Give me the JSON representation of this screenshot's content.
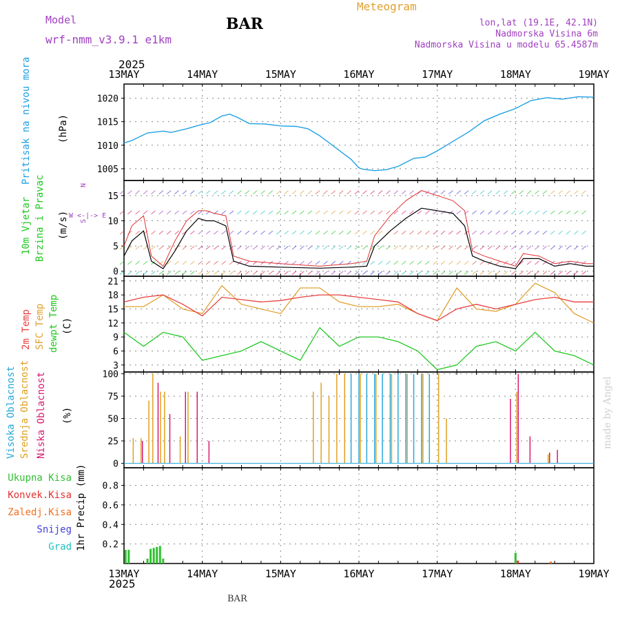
{
  "header": {
    "model_label": "Model",
    "model_name": "wrf-nmm_v3.9.1 e1km",
    "station": "BAR",
    "meteogram": "Meteogram",
    "lonlat": "lon,lat (19.1E, 42.1N)",
    "elev": "Nadmorska Visina 6m",
    "elev_model": "Nadmorska Visina u modelu 65.4587m",
    "footer_station": "BAR",
    "credit": "made by Angel"
  },
  "colors": {
    "pressure": "#1ea0e6",
    "temp2m": "#e64040",
    "sfc": "#e0a030",
    "dewpt": "#20c820",
    "high_cloud": "#28a8d8",
    "mid_cloud": "#e0a020",
    "low_cloud": "#d81870",
    "total_precip": "#30c030",
    "conv_precip": "#e03030",
    "frz_precip": "#f07020",
    "snow": "#4040e0",
    "hail": "#20c0c0",
    "wind_speed": "#000000",
    "wind_gust": "#e03030",
    "purple": "#a040c0"
  },
  "time_axis": {
    "year": "2025",
    "ticks": [
      "13MAY",
      "14MAY",
      "15MAY",
      "16MAY",
      "17MAY",
      "18MAY",
      "19MAY"
    ]
  },
  "side_labels": {
    "pressure": [
      "Pritisak na nivou mora"
    ],
    "pressure_unit": "(hPa)",
    "wind": [
      "10m Vjetar",
      "Brzina i Pravac"
    ],
    "wind_unit": "(m/s)",
    "wind_compass_top": "N",
    "wind_compass_mid": "W <-|-> E",
    "wind_compass_bot": "S",
    "temp": [
      "2m Temp",
      "SFC Temp",
      "dewpt Temp"
    ],
    "temp_unit": "(C)",
    "cloud": [
      "Visoka Oblacnost",
      "Srednja Oblacnost",
      "Niska Oblacnost"
    ],
    "cloud_unit": "(%)",
    "precip_legend": [
      "Ukupna Kisa",
      "Konvek.Kisa",
      "Zaledj.Kisa",
      "Snijeg",
      "Grad"
    ],
    "precip_unit": "1hr Precip (mm)"
  },
  "chart_data": [
    {
      "type": "line",
      "title": "Pritisak na nivou mora",
      "ylabel": "(hPa)",
      "ylim": [
        1002.5,
        1023
      ],
      "yticks": [
        1005,
        1010,
        1015,
        1020
      ],
      "x_days": [
        0,
        0.1,
        0.2,
        0.3,
        0.4,
        0.5,
        0.6,
        0.8,
        0.95,
        1.1,
        1.25,
        1.35,
        1.45,
        1.6,
        1.8,
        2.0,
        2.2,
        2.35,
        2.5,
        2.7,
        2.9,
        3.0,
        3.05,
        3.2,
        3.35,
        3.5,
        3.7,
        3.85,
        4.0,
        4.2,
        4.4,
        4.6,
        4.8,
        5.0,
        5.2,
        5.4,
        5.6,
        5.8,
        6.0
      ],
      "series": [
        {
          "values": [
            1010.5,
            1011,
            1011.8,
            1012.6,
            1012.8,
            1013,
            1012.7,
            1013.5,
            1014.2,
            1014.8,
            1016.2,
            1016.6,
            1015.9,
            1014.6,
            1014.5,
            1014.1,
            1014,
            1013.5,
            1012,
            1009.5,
            1007,
            1005.2,
            1004.9,
            1004.6,
            1004.8,
            1005.5,
            1007.2,
            1007.5,
            1008.8,
            1010.8,
            1012.8,
            1015.2,
            1016.6,
            1017.8,
            1019.5,
            1020.1,
            1019.8,
            1020.3,
            1020.2
          ]
        }
      ]
    },
    {
      "type": "line",
      "title": "10m Vjetar Brzina i Pravac",
      "ylabel": "(m/s)",
      "ylim": [
        -1,
        18
      ],
      "yticks": [
        0,
        5,
        10,
        15
      ],
      "x_days": [
        0,
        0.1,
        0.25,
        0.35,
        0.5,
        0.65,
        0.8,
        0.95,
        1.05,
        1.15,
        1.3,
        1.4,
        1.6,
        2.0,
        2.5,
        2.9,
        3.1,
        3.2,
        3.4,
        3.6,
        3.8,
        4.0,
        4.2,
        4.35,
        4.45,
        4.6,
        4.8,
        5.0,
        5.1,
        5.3,
        5.5,
        5.7,
        5.9,
        6.0
      ],
      "series": [
        {
          "name": "speed",
          "values": [
            3,
            6,
            8,
            2,
            0.5,
            4,
            8,
            10.5,
            10,
            10,
            9,
            2,
            1,
            0.8,
            0.6,
            0.8,
            1,
            5,
            8,
            10.5,
            12.5,
            12,
            11.5,
            9,
            3,
            2,
            1,
            0.5,
            2.5,
            2.5,
            1,
            1.5,
            1,
            1
          ]
        },
        {
          "name": "gust",
          "values": [
            5,
            9,
            11,
            3,
            1,
            6,
            10,
            12,
            12,
            11.5,
            11,
            3,
            2,
            1.5,
            1,
            1.5,
            2,
            7,
            11,
            14,
            16,
            15,
            14,
            12,
            4,
            3,
            2,
            1,
            3.5,
            3,
            1.5,
            2,
            1.5,
            1.5
          ]
        }
      ]
    },
    {
      "type": "line",
      "title": "Temp",
      "ylabel": "(C)",
      "ylim": [
        1.5,
        22
      ],
      "yticks": [
        3,
        6,
        9,
        12,
        15,
        18,
        21
      ],
      "x_days": [
        0,
        0.25,
        0.5,
        0.75,
        1.0,
        1.25,
        1.5,
        1.75,
        2.0,
        2.25,
        2.5,
        2.75,
        3.0,
        3.25,
        3.5,
        3.75,
        4.0,
        4.25,
        4.5,
        4.75,
        5.0,
        5.25,
        5.5,
        5.75,
        6.0
      ],
      "series": [
        {
          "name": "2m Temp",
          "values": [
            16.5,
            17.5,
            18,
            16,
            13.5,
            17.5,
            17,
            16.5,
            16.8,
            17.5,
            18,
            18,
            17.5,
            17,
            16.5,
            14,
            12.5,
            15,
            16,
            15,
            16,
            17,
            17.5,
            16.5,
            16.5
          ]
        },
        {
          "name": "SFC Temp",
          "values": [
            15.5,
            15.5,
            18,
            15,
            14,
            20,
            16,
            15,
            14,
            19.5,
            19.5,
            16.5,
            15.5,
            15.5,
            16,
            14,
            12.5,
            19.5,
            15,
            14.5,
            16,
            20.5,
            18.5,
            14,
            12
          ]
        },
        {
          "name": "dewpt Temp",
          "values": [
            10,
            7,
            10,
            9,
            4,
            5,
            6,
            8,
            6,
            4,
            11,
            7,
            9,
            9,
            8,
            6,
            2,
            3,
            7,
            8,
            6,
            10,
            6,
            5,
            3
          ]
        }
      ]
    },
    {
      "type": "bar",
      "title": "Oblacnost",
      "ylabel": "(%)",
      "ylim": [
        -5,
        102
      ],
      "yticks": [
        0,
        25,
        50,
        75,
        100
      ],
      "series": [
        {
          "name": "Visoka Oblacnost",
          "x_days": [
            2.9,
            3.0,
            3.1,
            3.2,
            3.3,
            3.4,
            3.5,
            3.6,
            3.7,
            3.8,
            3.9
          ],
          "values": [
            100,
            100,
            100,
            100,
            100,
            100,
            100,
            100,
            100,
            100,
            100
          ]
        },
        {
          "name": "Srednja Oblacnost",
          "x_days": [
            0.1,
            0.2,
            0.3,
            0.35,
            0.45,
            0.5,
            0.7,
            0.8,
            2.4,
            2.5,
            2.6,
            2.7,
            2.8,
            3.0,
            3.2,
            3.4,
            3.6,
            3.8,
            4.0,
            4.1,
            5.0,
            5.4
          ],
          "values": [
            28,
            28,
            70,
            100,
            80,
            80,
            30,
            80,
            80,
            90,
            75,
            100,
            100,
            100,
            100,
            100,
            100,
            100,
            100,
            50,
            80,
            10
          ]
        },
        {
          "name": "Niska Oblacnost",
          "x_days": [
            0.2,
            0.4,
            0.55,
            0.75,
            0.9,
            1.05,
            4.9,
            5.0,
            5.15,
            5.4,
            5.5
          ],
          "values": [
            25,
            90,
            55,
            80,
            80,
            25,
            72,
            100,
            30,
            12,
            15
          ]
        }
      ]
    },
    {
      "type": "bar",
      "title": "1hr Precip",
      "ylabel": "1hr Precip (mm)",
      "ylim": [
        0,
        0.98
      ],
      "yticks": [
        0.2,
        0.4,
        0.6,
        0.8
      ],
      "series": [
        {
          "name": "Ukupna Kisa",
          "x_days": [
            0.02,
            0.06,
            0.3,
            0.34,
            0.38,
            0.42,
            0.46,
            0.5,
            5.0
          ],
          "values": [
            0.14,
            0.14,
            0.05,
            0.15,
            0.16,
            0.17,
            0.18,
            0.05,
            0.11
          ]
        },
        {
          "name": "Konvek.Kisa",
          "x_days": [
            5.03
          ],
          "values": [
            0.03
          ]
        },
        {
          "name": "Zaledj.Kisa",
          "x_days": [
            5.45
          ],
          "values": [
            0.02
          ]
        }
      ]
    }
  ]
}
